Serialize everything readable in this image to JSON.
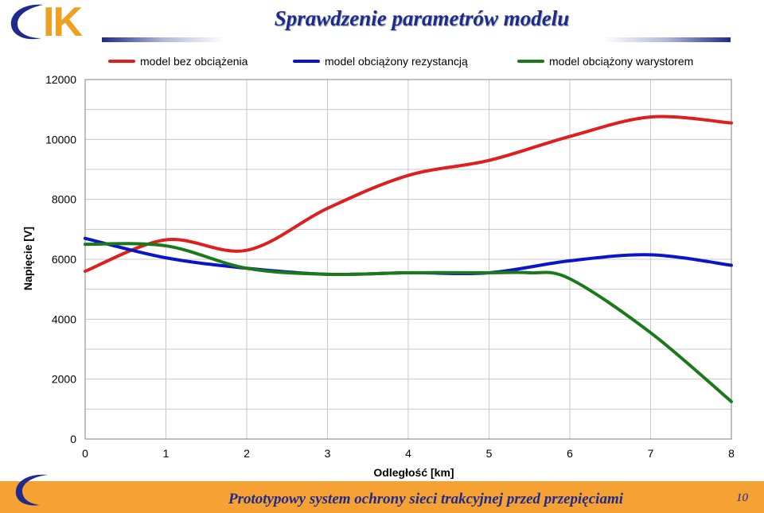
{
  "header": {
    "logo_text": "IK",
    "title": "Sprawdzenie parametrów modelu"
  },
  "footer": {
    "title": "Prototypowy system ochrony sieci trakcyjnej przed przepięciami",
    "page_number": "10"
  },
  "colors": {
    "accent": "#1e2a8c",
    "logo_orange": "#f0a020",
    "footer_bg": "#f5a133"
  },
  "chart_data": {
    "type": "line",
    "xlabel": "Odległość [km]",
    "ylabel": "Napięcie [V]",
    "xlim": [
      0,
      8
    ],
    "ylim": [
      0,
      12000
    ],
    "xticks": [
      "0",
      "1",
      "2",
      "3",
      "4",
      "5",
      "6",
      "7",
      "8"
    ],
    "yticks": [
      "0",
      "2000",
      "4000",
      "6000",
      "8000",
      "10000",
      "12000"
    ],
    "grid": true,
    "legend_position": "top",
    "series": [
      {
        "name": "model bez obciążenia",
        "color": "#dd1f1f",
        "x": [
          0,
          1,
          2,
          3,
          4,
          5,
          6,
          7,
          8
        ],
        "y": [
          5600,
          6650,
          6300,
          7700,
          8800,
          9300,
          10100,
          10750,
          10550
        ]
      },
      {
        "name": "model obciążony rezystancją",
        "color": "#0a14c8",
        "x": [
          0,
          1,
          2,
          3,
          4,
          5,
          6,
          7,
          8
        ],
        "y": [
          6700,
          6050,
          5700,
          5500,
          5550,
          5550,
          5950,
          6150,
          5800
        ]
      },
      {
        "name": "model obciążony warystorem",
        "color": "#1a7a1a",
        "x": [
          0,
          1,
          2,
          3,
          4,
          5,
          5.5,
          6,
          7,
          8
        ],
        "y": [
          6500,
          6450,
          5700,
          5500,
          5550,
          5550,
          5550,
          5350,
          3550,
          1250
        ]
      }
    ]
  }
}
